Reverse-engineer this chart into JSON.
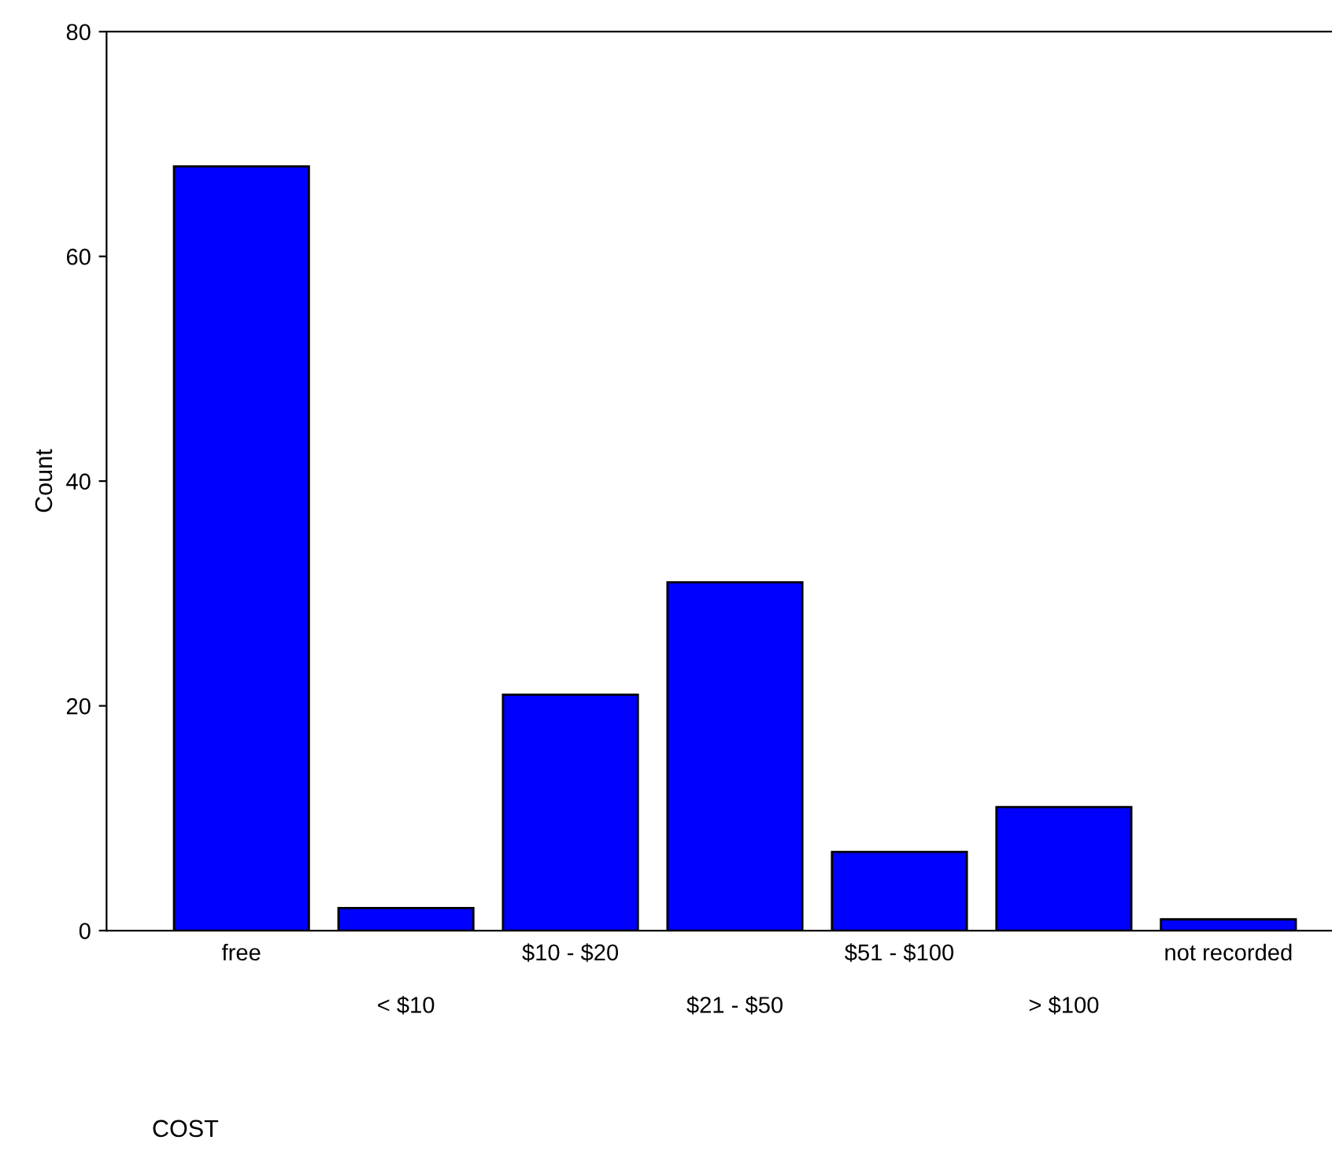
{
  "chart_data": {
    "type": "bar",
    "xlabel": "COST",
    "ylabel": "Count",
    "categories": [
      "free",
      "< $10",
      "$10 - $20",
      "$21 - $50",
      "$51 - $100",
      "> $100",
      "not recorded"
    ],
    "values": [
      68,
      2,
      21,
      31,
      7,
      11,
      1
    ],
    "color": "#0000ff",
    "ylim": [
      0,
      80
    ],
    "yticks": [
      0,
      20,
      40,
      60,
      80
    ],
    "grid": false,
    "legend": false
  }
}
